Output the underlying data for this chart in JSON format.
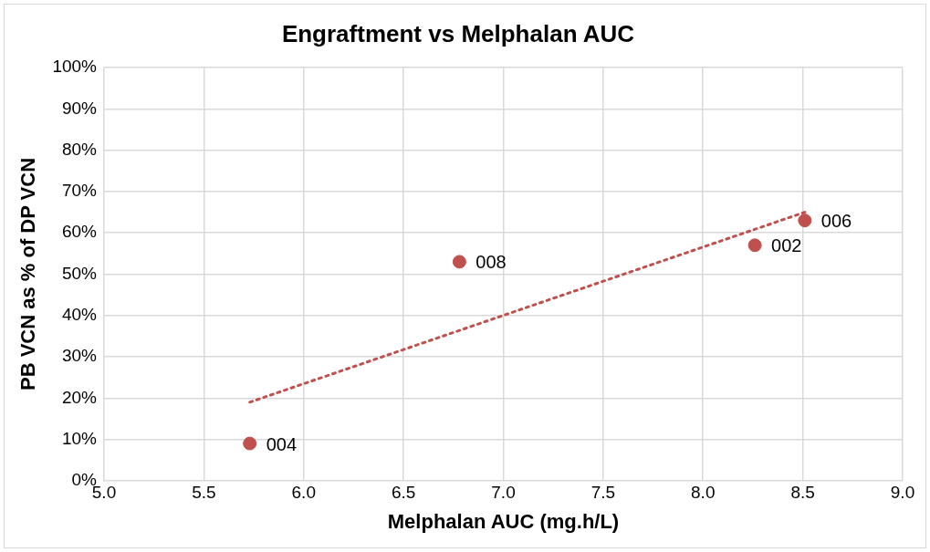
{
  "chart_data": {
    "type": "scatter",
    "title": "Engraftment vs Melphalan AUC",
    "xlabel": "Melphalan AUC (mg.h/L)",
    "ylabel": "PB VCN as % of DP VCN",
    "x": [
      5.73,
      6.78,
      8.26,
      8.51
    ],
    "series": [
      {
        "type": "scatter",
        "color": "#c0504d",
        "values": [
          9,
          53,
          57,
          63
        ],
        "marker": "circle"
      },
      {
        "type": "line",
        "color": "#c0504d",
        "x": [
          5.73,
          8.51
        ],
        "values": [
          19,
          65
        ],
        "line_style": "dotted",
        "marker": "none"
      }
    ],
    "xlim": [
      5,
      9
    ],
    "xticks": [
      {
        "value": 5,
        "label": "5.0"
      },
      {
        "value": 5.5,
        "label": "5.5"
      },
      {
        "value": 6,
        "label": "6.0"
      },
      {
        "value": 6.5,
        "label": "6.5"
      },
      {
        "value": 7,
        "label": "7.0"
      },
      {
        "value": 7.5,
        "label": "7.5"
      },
      {
        "value": 8,
        "label": "8.0"
      },
      {
        "value": 8.5,
        "label": "8.5"
      },
      {
        "value": 9,
        "label": "9.0"
      }
    ],
    "ylim": [
      0,
      100
    ],
    "yticks": [
      {
        "value": 0,
        "label": "0%"
      },
      {
        "value": 10,
        "label": "10%"
      },
      {
        "value": 20,
        "label": "20%"
      },
      {
        "value": 30,
        "label": "30%"
      },
      {
        "value": 40,
        "label": "40%"
      },
      {
        "value": 50,
        "label": "50%"
      },
      {
        "value": 60,
        "label": "60%"
      },
      {
        "value": 70,
        "label": "70%"
      },
      {
        "value": 80,
        "label": "80%"
      },
      {
        "value": 90,
        "label": "90%"
      },
      {
        "value": 100,
        "label": "100%"
      }
    ],
    "annotations": [
      {
        "text": "004",
        "x": 5.73,
        "y": 9
      },
      {
        "text": "008",
        "x": 6.78,
        "y": 53
      },
      {
        "text": "002",
        "x": 8.26,
        "y": 57
      },
      {
        "text": "006",
        "x": 8.51,
        "y": 63
      }
    ],
    "grid": true,
    "legend": false
  }
}
